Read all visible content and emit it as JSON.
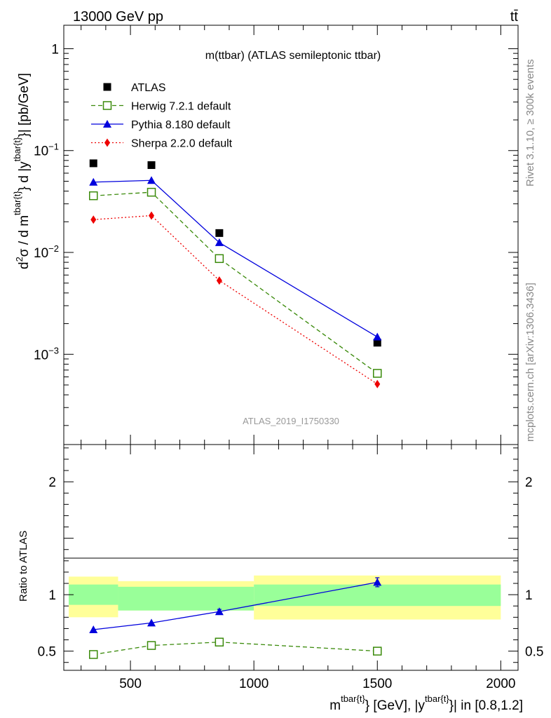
{
  "header": {
    "left": "13000 GeV pp",
    "right": "tt̄"
  },
  "side_text": {
    "top": "Rivet 3.1.10, ≥ 300k events",
    "bottom": "mcplots.cern.ch [arXiv:1306.3436]"
  },
  "chart_data": [
    {
      "type": "scatter",
      "panel": "main",
      "title": "m(ttbar) (ATLAS semileptonic ttbar)",
      "watermark": "ATLAS_2019_I1750330",
      "ylabel": "d²σ / d m^{tbar{t}} d |y^{tbar{t}}| [pb/GeV]",
      "yscale": "log",
      "ylim": [
        0.00013,
        1.7
      ],
      "xlim": [
        230,
        2070
      ],
      "y_ticks": [
        {
          "value": 1,
          "label": "1"
        },
        {
          "value": 0.1,
          "label": "10",
          "exp": "−1"
        },
        {
          "value": 0.01,
          "label": "10",
          "exp": "−2"
        },
        {
          "value": 0.001,
          "label": "10",
          "exp": "−3"
        }
      ],
      "legend": [
        {
          "name": "ATLAS",
          "color": "#000000",
          "marker": "square-filled",
          "line": "none"
        },
        {
          "name": "Herwig 7.2.1 default",
          "color": "#3a8a0a",
          "marker": "square-open",
          "line": "dashed"
        },
        {
          "name": "Pythia 8.180 default",
          "color": "#0000dd",
          "marker": "triangle",
          "line": "solid"
        },
        {
          "name": "Sherpa 2.2.0 default",
          "color": "#ee0000",
          "marker": "diamond",
          "line": "dotted"
        }
      ],
      "series": [
        {
          "name": "ATLAS",
          "x": [
            350,
            585,
            860,
            1500
          ],
          "y": [
            0.075,
            0.072,
            0.0155,
            0.0013
          ]
        },
        {
          "name": "Herwig 7.2.1 default",
          "x": [
            350,
            585,
            860,
            1500
          ],
          "y": [
            0.036,
            0.039,
            0.0087,
            0.00065
          ]
        },
        {
          "name": "Pythia 8.180 default",
          "x": [
            350,
            585,
            860,
            1500
          ],
          "y": [
            0.049,
            0.051,
            0.0125,
            0.00148
          ]
        },
        {
          "name": "Sherpa 2.2.0 default",
          "x": [
            350,
            585,
            860,
            1500
          ],
          "y": [
            0.021,
            0.023,
            0.0053,
            0.00051
          ]
        }
      ]
    },
    {
      "type": "scatter",
      "panel": "ratio",
      "ylabel": "Ratio to ATLAS",
      "xlabel": "m^{tbar{t}} [GeV], |y^{tbar{t}}| in [0.8,1.2]",
      "ylim": [
        0.33,
        2.33
      ],
      "xlim": [
        230,
        2070
      ],
      "x_ticks": [
        500,
        1000,
        1500,
        2000
      ],
      "y_ticks": [
        0.5,
        1,
        2
      ],
      "bands": [
        {
          "x0": 250,
          "x1": 450,
          "inner": [
            0.91,
            1.09
          ],
          "outer": [
            0.8,
            1.16
          ]
        },
        {
          "x0": 450,
          "x1": 1000,
          "inner": [
            0.86,
            1.07
          ],
          "outer": [
            0.86,
            1.12
          ]
        },
        {
          "x0": 1000,
          "x1": 2000,
          "inner": [
            0.9,
            1.09
          ],
          "outer": [
            0.78,
            1.17
          ]
        }
      ],
      "band_colors": {
        "inner": "#99ff99",
        "outer": "#ffff99"
      },
      "series": [
        {
          "name": "Herwig 7.2.1 default",
          "x": [
            350,
            585,
            860,
            1500
          ],
          "y": [
            0.47,
            0.55,
            0.58,
            0.5
          ]
        },
        {
          "name": "Pythia 8.180 default",
          "x": [
            350,
            585,
            860,
            1500
          ],
          "y": [
            0.69,
            0.75,
            0.85,
            1.11
          ],
          "err": [
            0,
            0,
            0.02,
            0.04
          ]
        }
      ]
    }
  ]
}
